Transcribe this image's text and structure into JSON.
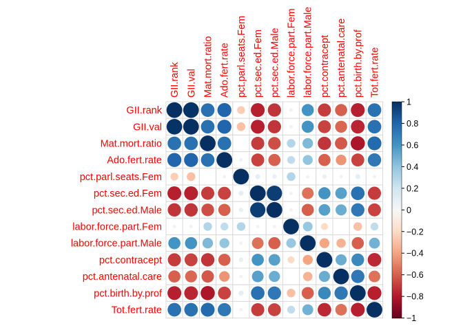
{
  "chart_data": {
    "type": "heatmap",
    "variables": [
      "GII.rank",
      "GII.val",
      "Mat.mort.ratio",
      "Ado.fert.rate",
      "pct.parl.seats.Fem",
      "pct.sec.ed.Fem",
      "pct.sec.ed.Male",
      "labor.force.part.Fem",
      "labor.force.part.Male",
      "pct.contracept",
      "pct.antenatal.care",
      "pct.birth.by.prof",
      "Tot.fert.rate"
    ],
    "matrix": [
      [
        1.0,
        0.99,
        0.75,
        0.8,
        -0.25,
        -0.78,
        -0.72,
        0.05,
        0.6,
        -0.7,
        -0.6,
        -0.78,
        0.75
      ],
      [
        0.99,
        1.0,
        0.75,
        0.8,
        -0.3,
        -0.78,
        -0.72,
        0.05,
        0.6,
        -0.68,
        -0.58,
        -0.76,
        0.75
      ],
      [
        0.75,
        0.75,
        1.0,
        0.75,
        0.0,
        -0.7,
        -0.65,
        0.3,
        0.45,
        -0.72,
        -0.62,
        -0.82,
        0.78
      ],
      [
        0.8,
        0.8,
        0.75,
        1.0,
        0.05,
        -0.68,
        -0.6,
        0.25,
        0.4,
        -0.6,
        -0.45,
        -0.68,
        0.72
      ],
      [
        -0.25,
        -0.3,
        0.0,
        0.05,
        1.0,
        0.1,
        0.08,
        0.3,
        0.05,
        0.08,
        0.05,
        0.1,
        -0.05
      ],
      [
        -0.78,
        -0.78,
        -0.7,
        -0.68,
        0.1,
        1.0,
        0.95,
        -0.05,
        -0.55,
        0.6,
        0.55,
        0.75,
        -0.7
      ],
      [
        -0.72,
        -0.72,
        -0.65,
        -0.6,
        0.08,
        0.95,
        1.0,
        -0.05,
        -0.6,
        0.55,
        0.5,
        0.72,
        -0.68
      ],
      [
        0.05,
        0.05,
        0.3,
        0.25,
        0.3,
        -0.05,
        -0.05,
        1.0,
        0.38,
        -0.2,
        0.0,
        -0.3,
        0.25
      ],
      [
        0.6,
        0.6,
        0.45,
        0.4,
        0.05,
        -0.55,
        -0.6,
        0.38,
        1.0,
        -0.4,
        -0.35,
        -0.6,
        0.48
      ],
      [
        -0.7,
        -0.68,
        -0.72,
        -0.6,
        0.08,
        0.6,
        0.55,
        -0.2,
        -0.4,
        1.0,
        0.5,
        0.65,
        -0.75
      ],
      [
        -0.6,
        -0.58,
        -0.62,
        -0.45,
        0.05,
        0.55,
        0.5,
        0.0,
        -0.35,
        0.5,
        1.0,
        0.72,
        -0.55
      ],
      [
        -0.78,
        -0.76,
        -0.82,
        -0.68,
        0.1,
        0.75,
        0.72,
        -0.3,
        -0.6,
        0.65,
        0.72,
        1.0,
        -0.78
      ],
      [
        0.75,
        0.75,
        0.78,
        0.72,
        -0.05,
        -0.7,
        -0.68,
        0.25,
        0.48,
        -0.75,
        -0.55,
        -0.78,
        1.0
      ]
    ],
    "colorbar": {
      "ticks": [
        1,
        0.8,
        0.6,
        0.4,
        0.2,
        0,
        -0.2,
        -0.4,
        -0.6,
        -0.8,
        -1
      ],
      "tick_labels": [
        "1",
        "0.8",
        "0.6",
        "0.4",
        "0.2",
        "0",
        "−0.2",
        "−0.4",
        "−0.6",
        "−0.8",
        "−1"
      ],
      "range": [
        -1,
        1
      ]
    },
    "colors": {
      "positive_dark": "#053061",
      "positive_mid": "#4393c3",
      "neutral": "#f7f7f7",
      "negative_mid": "#d6604d",
      "negative_dark": "#67001f",
      "label": "#ff0000",
      "grid": "#d9d9d9"
    },
    "glyph": "circle",
    "grid": true,
    "legend": "right"
  }
}
